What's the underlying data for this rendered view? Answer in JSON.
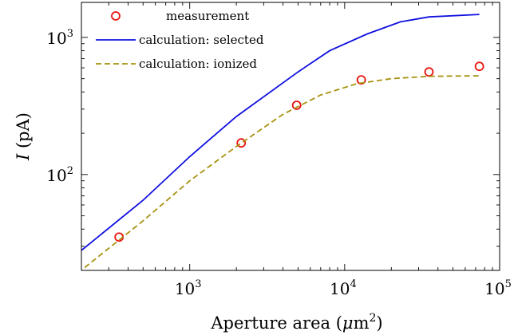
{
  "chart_data": {
    "type": "line",
    "x_scale": "log",
    "y_scale": "log",
    "xlim": [
      200,
      100000
    ],
    "ylim": [
      20,
      1800
    ],
    "xlabel_main": "Aperture area (",
    "xlabel_mu": "μ",
    "xlabel_unit": "m",
    "xlabel_exp": "2",
    "xlabel_close": ")",
    "ylabel_var": "I",
    "ylabel_unit": " (pA)",
    "grid": false,
    "legend_position": "top-left",
    "x_ticks": [
      {
        "base": "10",
        "exp": "3",
        "value": 1000
      },
      {
        "base": "10",
        "exp": "4",
        "value": 10000
      },
      {
        "base": "10",
        "exp": "5",
        "value": 100000
      }
    ],
    "y_ticks": [
      {
        "base": "10",
        "exp": "2",
        "value": 100
      },
      {
        "base": "10",
        "exp": "3",
        "value": 1000
      }
    ],
    "series": [
      {
        "name": "measurement",
        "style": "markers",
        "color": "#e8150e",
        "x": [
          350,
          2150,
          4900,
          12800,
          35000,
          74000
        ],
        "y": [
          35,
          170,
          320,
          490,
          560,
          615
        ]
      },
      {
        "name": "calculation: selected",
        "style": "solid",
        "color": "#1010e0",
        "x": [
          200,
          500,
          1000,
          2000,
          5000,
          8000,
          14000,
          23000,
          35000,
          74000
        ],
        "y": [
          28,
          65,
          135,
          265,
          560,
          800,
          1060,
          1300,
          1410,
          1470
        ]
      },
      {
        "name": "calculation: ionized",
        "style": "dashed",
        "color": "#a8920f",
        "x": [
          210,
          500,
          1000,
          2000,
          4000,
          7000,
          12000,
          20000,
          35000,
          74000
        ],
        "y": [
          21,
          46,
          90,
          160,
          275,
          380,
          460,
          500,
          520,
          525
        ]
      }
    ]
  }
}
